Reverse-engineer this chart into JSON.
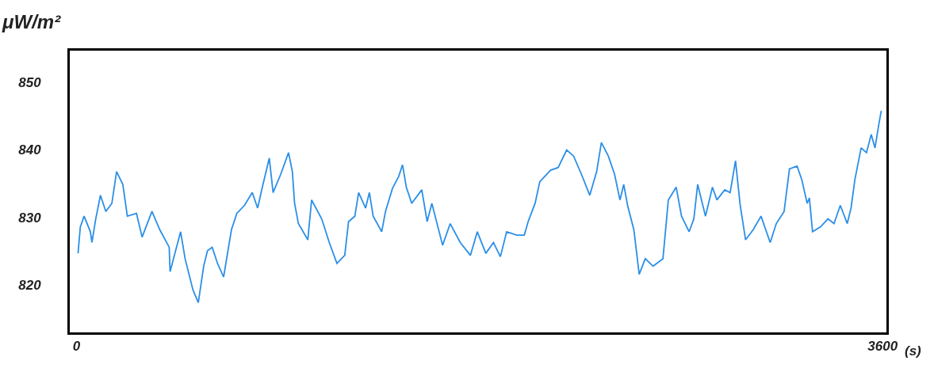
{
  "chart_data": {
    "type": "line",
    "ylabel": "μW/m²",
    "xlabel": "(s)",
    "x": [
      7,
      17,
      34,
      62,
      69,
      86,
      107,
      131,
      158,
      179,
      207,
      227,
      268,
      293,
      337,
      372,
      414,
      418,
      465,
      485,
      520,
      544,
      568,
      585,
      606,
      630,
      657,
      692,
      716,
      750,
      785,
      809,
      830,
      861,
      878,
      912,
      947,
      964,
      974,
      991,
      1033,
      1050,
      1095,
      1129,
      1163,
      1198,
      1215,
      1243,
      1260,
      1291,
      1308,
      1325,
      1363,
      1380,
      1411,
      1439,
      1456,
      1473,
      1497,
      1542,
      1566,
      1587,
      1635,
      1669,
      1714,
      1759,
      1790,
      1828,
      1862,
      1893,
      1921,
      1966,
      2000,
      2017,
      2048,
      2069,
      2117,
      2151,
      2189,
      2220,
      2255,
      2292,
      2323,
      2344,
      2375,
      2403,
      2427,
      2444,
      2461,
      2489,
      2513,
      2540,
      2575,
      2619,
      2643,
      2678,
      2702,
      2736,
      2757,
      2774,
      2809,
      2840,
      2860,
      2895,
      2919,
      2943,
      2964,
      2988,
      3022,
      3057,
      3098,
      3125,
      3160,
      3184,
      3218,
      3239,
      3263,
      3273,
      3287,
      3322,
      3356,
      3383,
      3411,
      3442,
      3459,
      3476,
      3504,
      3528,
      3549,
      3566,
      3583,
      3594
    ],
    "series": [
      {
        "color": "#2b8fe8",
        "values": [
          824.7,
          828.6,
          830.2,
          827.9,
          826.3,
          829.8,
          833.3,
          830.9,
          832.1,
          836.8,
          834.9,
          830.2,
          830.6,
          827.1,
          830.9,
          828.2,
          825.6,
          822.0,
          827.9,
          823.9,
          819.3,
          817.4,
          822.8,
          825.1,
          825.6,
          823.2,
          821.2,
          828.2,
          830.6,
          831.8,
          833.7,
          831.4,
          834.5,
          838.8,
          833.7,
          836.4,
          839.6,
          836.8,
          832.1,
          829.1,
          826.7,
          832.6,
          829.8,
          826.3,
          823.2,
          824.4,
          829.4,
          830.2,
          833.7,
          831.4,
          833.7,
          830.2,
          827.9,
          830.9,
          834.3,
          836.1,
          837.8,
          834.5,
          832.1,
          834.1,
          829.4,
          832.1,
          825.9,
          829.1,
          826.3,
          824.4,
          827.9,
          824.7,
          826.3,
          824.2,
          827.9,
          827.4,
          827.4,
          829.4,
          832.1,
          835.3,
          837.0,
          837.4,
          840.0,
          839.1,
          836.4,
          833.3,
          836.8,
          841.1,
          839.1,
          836.4,
          832.6,
          834.9,
          831.8,
          828.2,
          821.6,
          823.9,
          822.8,
          823.9,
          832.6,
          834.5,
          830.2,
          827.9,
          829.8,
          834.9,
          830.2,
          834.5,
          832.6,
          834.1,
          833.7,
          838.4,
          831.8,
          826.7,
          828.2,
          830.2,
          826.3,
          829.1,
          830.9,
          837.2,
          837.6,
          835.6,
          832.1,
          832.9,
          827.9,
          828.6,
          829.8,
          829.1,
          831.8,
          829.1,
          831.4,
          835.6,
          840.3,
          839.6,
          842.3,
          840.3,
          843.8,
          845.8
        ]
      }
    ],
    "xlim": [
      -30,
      3617
    ],
    "xticks": [
      0,
      3600
    ],
    "ylim": [
      813,
      854.7
    ],
    "yticks": [
      820,
      830,
      840,
      850
    ],
    "legend": false,
    "marker": "none",
    "line_style": "solid"
  }
}
